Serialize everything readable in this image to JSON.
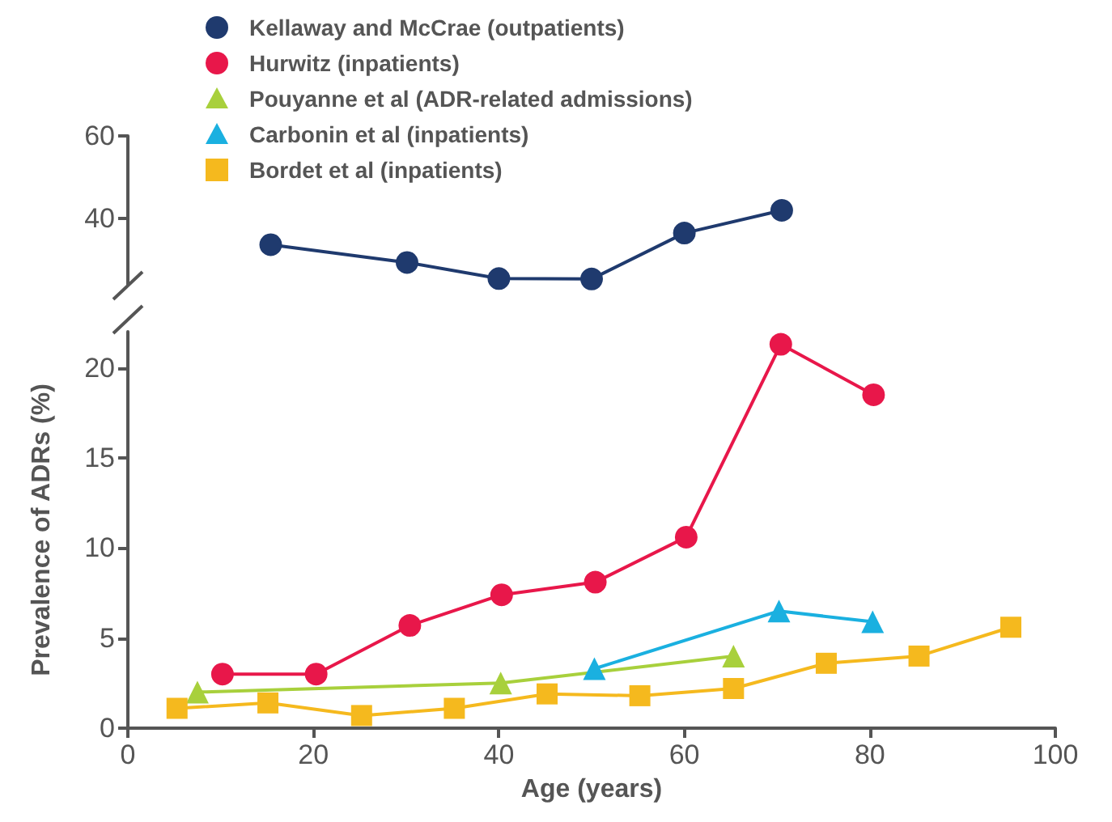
{
  "chart_data": [
    {
      "type": "line",
      "legend": "top",
      "grid": false,
      "tick_labels": "y",
      "xlim": [
        0,
        100
      ],
      "ylim": [
        24,
        60
      ],
      "yticks": [
        40,
        60
      ],
      "series": [
        {
          "name": "Kellaway and McCrae (outpatients)",
          "color": "#1f3a6e",
          "marker": "circle",
          "x": [
            15.4,
            30.1,
            40,
            50,
            60,
            70.5
          ],
          "values": [
            33.7,
            29.4,
            25.5,
            25.4,
            36.5,
            42
          ]
        }
      ]
    },
    {
      "type": "line",
      "legend": "top",
      "grid": false,
      "xlabel": "Age (years)",
      "ylabel": "Prevalence of ADRs (%)",
      "xlim": [
        0,
        100
      ],
      "xticks": [
        0,
        20,
        40,
        60,
        80,
        100
      ],
      "ylim": [
        0,
        22
      ],
      "yticks": [
        0,
        5,
        10,
        15,
        20
      ],
      "series": [
        {
          "name": "Hurwitz (inpatients)",
          "color": "#e8174a",
          "marker": "circle",
          "x": [
            10.2,
            20.3,
            30.4,
            40.3,
            50.4,
            60.2,
            70.4,
            80.4
          ],
          "values": [
            3.0,
            3.0,
            5.7,
            7.4,
            8.1,
            10.6,
            21.3,
            18.5
          ]
        },
        {
          "name": "Pouyanne et al (ADR-related admissions)",
          "color": "#a8d03c",
          "marker": "triangle",
          "x": [
            7.5,
            40.2,
            65.3
          ],
          "values": [
            2.0,
            2.5,
            4.0
          ]
        },
        {
          "name": "Carbonin et al (inpatients)",
          "color": "#1ab0e0",
          "marker": "triangle",
          "x": [
            50.3,
            70.2,
            80.3
          ],
          "values": [
            3.3,
            6.5,
            5.9
          ]
        },
        {
          "name": "Bordet et al (inpatients)",
          "color": "#f5b91e",
          "marker": "square",
          "x": [
            5.3,
            15.1,
            25.2,
            35.2,
            45.2,
            55.2,
            65.3,
            75.3,
            85.3,
            95.2
          ],
          "values": [
            1.1,
            1.4,
            0.7,
            1.1,
            1.9,
            1.8,
            2.2,
            3.6,
            4.0,
            5.6
          ]
        }
      ]
    }
  ]
}
